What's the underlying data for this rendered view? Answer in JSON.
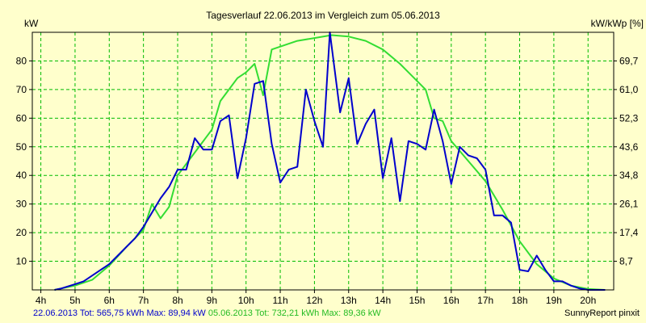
{
  "chart_data": {
    "type": "line",
    "title": "Tagesverlauf 22.06.2013 im Vergleich zum 05.06.2013",
    "ylabel_left": "kW",
    "ylabel_right": "kW/kWp [%]",
    "x_ticks": [
      "4h",
      "5h",
      "6h",
      "7h",
      "8h",
      "9h",
      "10h",
      "11h",
      "12h",
      "13h",
      "14h",
      "15h",
      "16h",
      "17h",
      "18h",
      "19h",
      "20h"
    ],
    "y_ticks_left": [
      "10",
      "20",
      "30",
      "40",
      "50",
      "60",
      "70",
      "80"
    ],
    "y_ticks_right": [
      "8,7",
      "17,4",
      "26,1",
      "34,8",
      "43,6",
      "52,3",
      "61,0",
      "69,7"
    ],
    "ylim": [
      0,
      90
    ],
    "xlim": [
      3.75,
      20.75
    ],
    "grid": true,
    "series": [
      {
        "name": "22.06.2013",
        "color": "#0000cc",
        "points": [
          [
            4.4,
            0
          ],
          [
            4.6,
            0.5
          ],
          [
            5.0,
            2
          ],
          [
            5.25,
            3
          ],
          [
            5.5,
            5
          ],
          [
            5.75,
            7
          ],
          [
            6.0,
            9
          ],
          [
            6.25,
            12
          ],
          [
            6.5,
            15
          ],
          [
            6.75,
            18
          ],
          [
            7.0,
            22
          ],
          [
            7.25,
            27
          ],
          [
            7.5,
            32
          ],
          [
            7.75,
            36
          ],
          [
            8.0,
            42
          ],
          [
            8.25,
            42
          ],
          [
            8.5,
            53
          ],
          [
            8.75,
            49
          ],
          [
            9.0,
            49
          ],
          [
            9.25,
            59
          ],
          [
            9.5,
            61
          ],
          [
            9.75,
            39
          ],
          [
            10.0,
            53
          ],
          [
            10.25,
            72
          ],
          [
            10.5,
            73
          ],
          [
            10.75,
            51
          ],
          [
            11.0,
            37.5
          ],
          [
            11.25,
            42
          ],
          [
            11.5,
            43
          ],
          [
            11.75,
            70
          ],
          [
            12.0,
            59
          ],
          [
            12.25,
            50
          ],
          [
            12.45,
            90
          ],
          [
            12.75,
            62
          ],
          [
            13.0,
            74
          ],
          [
            13.25,
            51
          ],
          [
            13.5,
            58
          ],
          [
            13.75,
            63
          ],
          [
            14.0,
            39
          ],
          [
            14.25,
            53
          ],
          [
            14.5,
            31
          ],
          [
            14.75,
            52
          ],
          [
            15.0,
            51
          ],
          [
            15.25,
            49
          ],
          [
            15.5,
            63
          ],
          [
            15.75,
            52
          ],
          [
            16.0,
            37
          ],
          [
            16.25,
            50
          ],
          [
            16.5,
            47
          ],
          [
            16.75,
            46
          ],
          [
            17.0,
            42
          ],
          [
            17.25,
            26
          ],
          [
            17.5,
            26
          ],
          [
            17.75,
            23.5
          ],
          [
            18.0,
            7
          ],
          [
            18.25,
            6.5
          ],
          [
            18.5,
            12
          ],
          [
            18.75,
            7
          ],
          [
            19.0,
            3
          ],
          [
            19.25,
            3
          ],
          [
            19.5,
            1.5
          ],
          [
            19.75,
            0.5
          ],
          [
            20.0,
            0
          ],
          [
            20.5,
            0
          ]
        ]
      },
      {
        "name": "05.06.2013",
        "color": "#33dd33",
        "points": [
          [
            4.4,
            0
          ],
          [
            4.6,
            0.5
          ],
          [
            5.0,
            1.5
          ],
          [
            5.5,
            3.5
          ],
          [
            6.0,
            8.5
          ],
          [
            6.5,
            15
          ],
          [
            7.0,
            21
          ],
          [
            7.25,
            30
          ],
          [
            7.5,
            25
          ],
          [
            7.75,
            29
          ],
          [
            8.0,
            40
          ],
          [
            8.5,
            48
          ],
          [
            9.0,
            56
          ],
          [
            9.25,
            66
          ],
          [
            9.5,
            70
          ],
          [
            9.75,
            74
          ],
          [
            10.0,
            76
          ],
          [
            10.25,
            79
          ],
          [
            10.5,
            68
          ],
          [
            10.75,
            84
          ],
          [
            11.0,
            85
          ],
          [
            11.5,
            87
          ],
          [
            12.0,
            88
          ],
          [
            12.5,
            89
          ],
          [
            13.0,
            88.5
          ],
          [
            13.5,
            87
          ],
          [
            14.0,
            84
          ],
          [
            14.5,
            79
          ],
          [
            15.0,
            73
          ],
          [
            15.25,
            70
          ],
          [
            15.5,
            60
          ],
          [
            15.75,
            59
          ],
          [
            16.0,
            52
          ],
          [
            16.5,
            45
          ],
          [
            17.0,
            38
          ],
          [
            17.5,
            28
          ],
          [
            18.0,
            17
          ],
          [
            18.5,
            9
          ],
          [
            19.0,
            4
          ],
          [
            19.5,
            1.5
          ],
          [
            20.0,
            0.3
          ],
          [
            20.5,
            0
          ]
        ]
      }
    ],
    "legend": {
      "series1_text": "22.06.2013 Tot: 565,75 kWh Max: 89,94 kW",
      "series2_text": "05.06.2013 Tot: 732,21 kWh Max: 89,36 kW"
    },
    "credit": "SunnyReport pinxit"
  }
}
